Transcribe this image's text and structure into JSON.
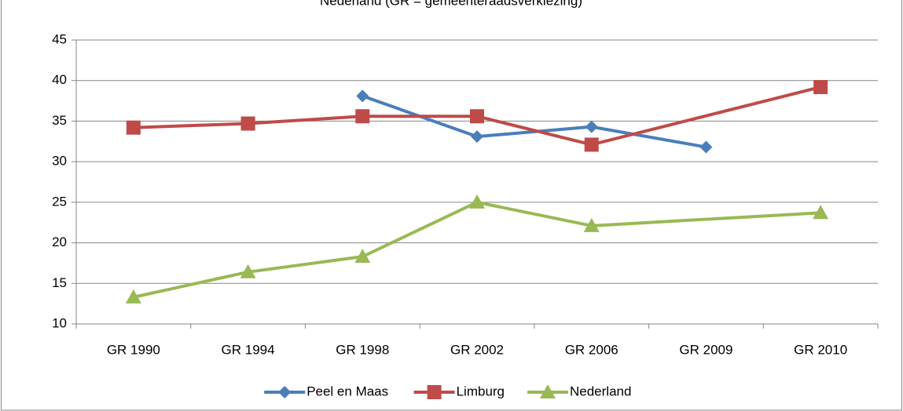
{
  "chart_data": {
    "type": "line",
    "title": "Nederland (GR = gemeenteraadsverkiezing)",
    "categories": [
      "GR 1990",
      "GR 1994",
      "GR 1998",
      "GR 2002",
      "GR 2006",
      "GR 2009",
      "GR 2010"
    ],
    "series": [
      {
        "name": "Peel en Maas",
        "color": "#4a7ebb",
        "marker": "diamond",
        "values": [
          null,
          null,
          38.1,
          33.1,
          34.3,
          31.8,
          null
        ]
      },
      {
        "name": "Limburg",
        "color": "#be4b48",
        "marker": "square",
        "values": [
          34.2,
          34.7,
          35.6,
          35.6,
          32.1,
          null,
          39.2
        ]
      },
      {
        "name": "Nederland",
        "color": "#98b954",
        "marker": "triangle",
        "values": [
          13.3,
          16.4,
          18.3,
          25.0,
          22.1,
          null,
          23.7
        ]
      }
    ],
    "ylim": [
      10,
      45
    ],
    "yticks": [
      10,
      15,
      20,
      25,
      30,
      35,
      40,
      45
    ],
    "grid": true,
    "connect_gaps": true,
    "legend": "bottom"
  }
}
